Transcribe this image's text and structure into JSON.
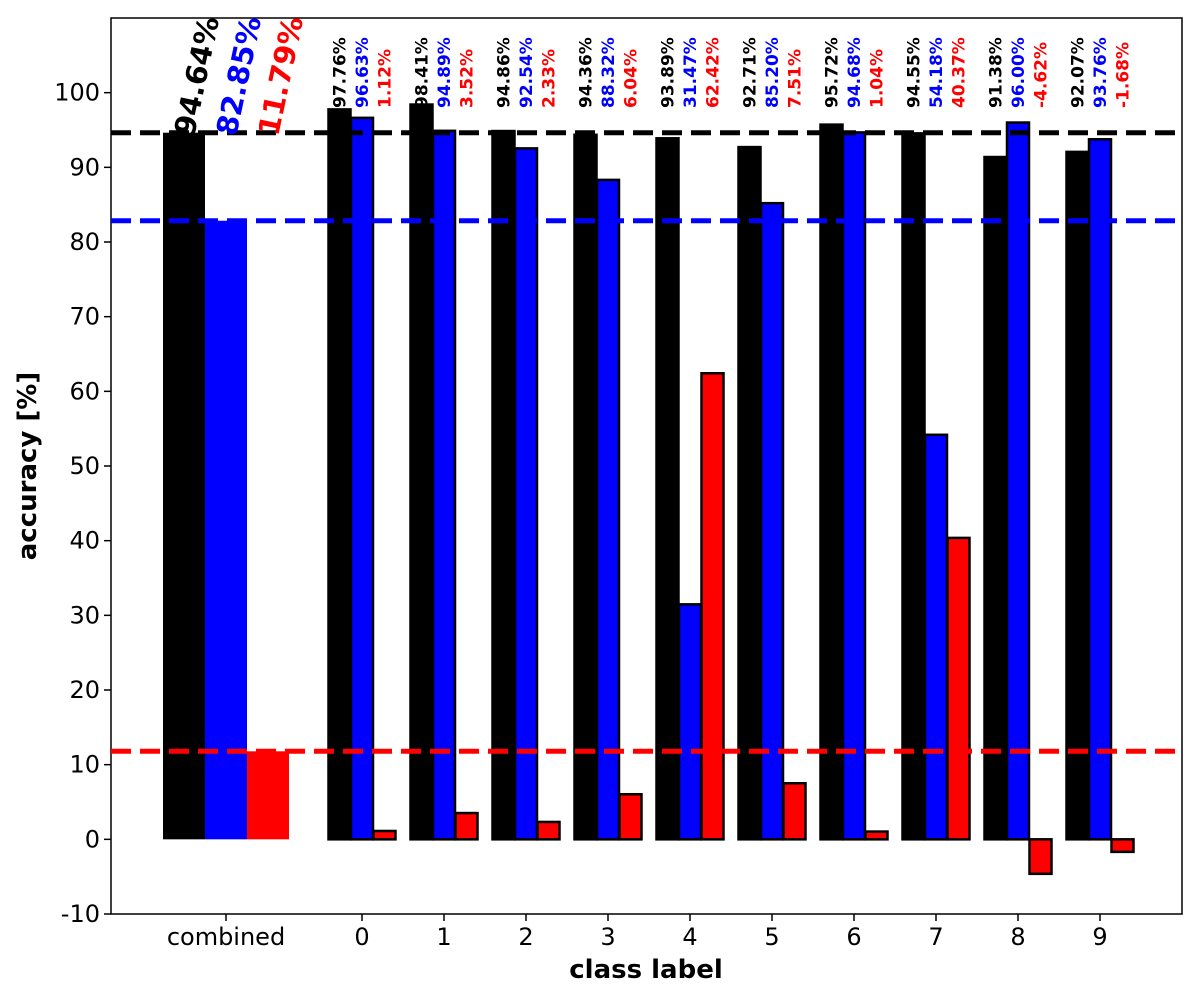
{
  "chart_data": {
    "type": "bar",
    "title": "",
    "xlabel": "class label",
    "ylabel": "accuracy [%]",
    "ylim": [
      -10,
      110
    ],
    "yticks": [
      -10,
      0,
      10,
      20,
      30,
      40,
      50,
      60,
      70,
      80,
      90,
      100
    ],
    "grid": false,
    "legend": "none",
    "categories": [
      "combined",
      "0",
      "1",
      "2",
      "3",
      "4",
      "5",
      "6",
      "7",
      "8",
      "9"
    ],
    "series": [
      {
        "color": "#000000",
        "values": [
          94.64,
          97.76,
          98.41,
          94.86,
          94.36,
          93.89,
          92.71,
          95.72,
          94.55,
          91.38,
          92.07
        ],
        "labels": [
          "94.64%",
          "97.76%",
          "98.41%",
          "94.86%",
          "94.36%",
          "93.89%",
          "92.71%",
          "95.72%",
          "94.55%",
          "91.38%",
          "92.07%"
        ]
      },
      {
        "color": "#0000ff",
        "values": [
          82.85,
          96.63,
          94.89,
          92.54,
          88.32,
          31.47,
          85.2,
          94.68,
          54.18,
          96.0,
          93.76
        ],
        "labels": [
          "82.85%",
          "96.63%",
          "94.89%",
          "92.54%",
          "88.32%",
          "31.47%",
          "85.20%",
          "94.68%",
          "54.18%",
          "96.00%",
          "93.76%"
        ]
      },
      {
        "color": "#ff0000",
        "values": [
          11.79,
          1.12,
          3.52,
          2.33,
          6.04,
          62.42,
          7.51,
          1.04,
          40.37,
          -4.62,
          -1.68
        ],
        "labels": [
          "11.79%",
          "1.12%",
          "3.52%",
          "2.33%",
          "6.04%",
          "62.42%",
          "7.51%",
          "1.04%",
          "40.37%",
          "-4.62%",
          "-1.68%"
        ]
      }
    ],
    "reference_lines": [
      {
        "value": 94.64,
        "color": "#000000",
        "style": "dashed"
      },
      {
        "value": 82.85,
        "color": "#0000ff",
        "style": "dashed"
      },
      {
        "value": 11.79,
        "color": "#ff0000",
        "style": "dashed"
      }
    ]
  }
}
